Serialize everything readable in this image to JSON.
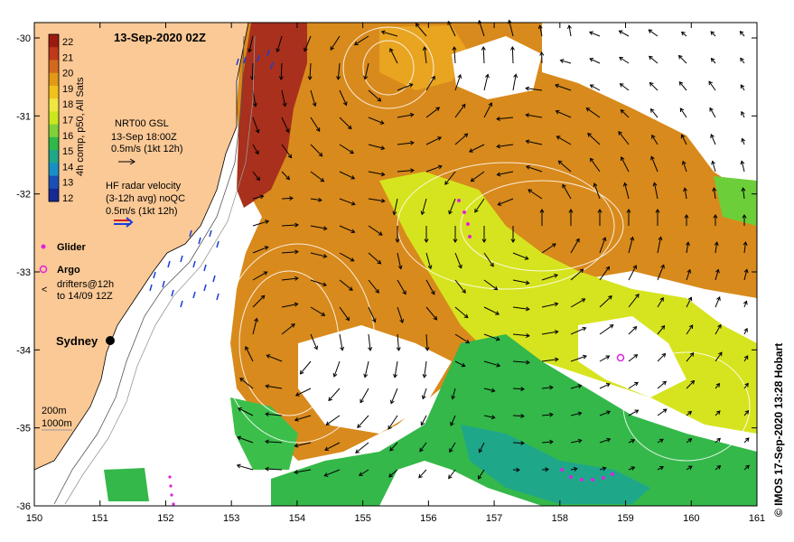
{
  "map": {
    "title": "13-Sep-2020 02Z",
    "credit": "©  IMOS 17-Sep-2020 13:28 Hobart",
    "lon_ticks": [
      "150",
      "151",
      "152",
      "153",
      "154",
      "155",
      "156",
      "157",
      "158",
      "159",
      "160",
      "161"
    ],
    "lat_ticks": [
      "-30",
      "-31",
      "-32",
      "-33",
      "-34",
      "-35",
      "-36"
    ],
    "lon_range": [
      150,
      161
    ],
    "lat_range": [
      -36,
      -30
    ]
  },
  "colorbar": {
    "label": "4h comp, p50, All Sats",
    "ticks": [
      "22",
      "21",
      "20",
      "19",
      "18",
      "17",
      "16",
      "15",
      "14",
      "13",
      "12"
    ],
    "colors": [
      "#9b1b10",
      "#c0391a",
      "#d2691e",
      "#e09a16",
      "#f2c21c",
      "#f0e640",
      "#cbe61c",
      "#7fd13a",
      "#2fb848",
      "#1fa78a",
      "#1890c6",
      "#1a4fb7",
      "#152a93"
    ]
  },
  "legend": {
    "gsl": {
      "line1": "NRT00 GSL",
      "line2": "13-Sep 18:00Z",
      "line3": "0.5m/s (1kt 12h)"
    },
    "hf": {
      "line1": "HF radar velocity",
      "line2": "(3-12h avg) noQC",
      "line3": "0.5m/s (1kt 12h)"
    },
    "glider": "Glider",
    "argo": "Argo",
    "drifters": {
      "line1": "drifters@12h",
      "line2": "to 14/09 12Z"
    },
    "depth": {
      "line1": "200m",
      "line2": "1000m"
    }
  },
  "places": {
    "sydney": "Sydney"
  },
  "colors": {
    "land": "#fbc996",
    "warm": "#d98a18",
    "hot": "#a8301c",
    "green": "#34b84a",
    "yellow": "#d6e41f",
    "glider": "#e020e0",
    "hf": "#1a3fd8"
  }
}
